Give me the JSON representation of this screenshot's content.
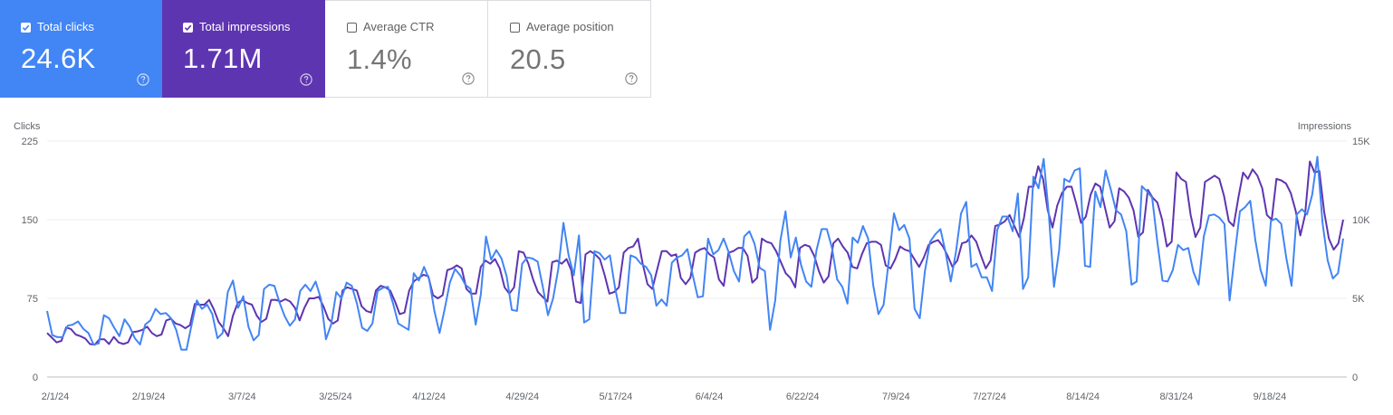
{
  "cards": [
    {
      "key": "clicks",
      "label": "Total clicks",
      "value": "24.6K",
      "checked": true,
      "color": "#4285f4"
    },
    {
      "key": "impressions",
      "label": "Total impressions",
      "value": "1.71M",
      "checked": true,
      "color": "#5e35b1"
    },
    {
      "key": "ctr",
      "label": "Average CTR",
      "value": "1.4%",
      "checked": false,
      "color": "#ffffff"
    },
    {
      "key": "position",
      "label": "Average position",
      "value": "20.5",
      "checked": false,
      "color": "#ffffff"
    }
  ],
  "chart_data": {
    "type": "line",
    "left_axis": {
      "label": "Clicks",
      "ticks": [
        "225",
        "150",
        "75",
        "0"
      ],
      "range": [
        0,
        225
      ]
    },
    "right_axis": {
      "label": "Impressions",
      "ticks": [
        "15K",
        "10K",
        "5K",
        "0"
      ],
      "range": [
        0,
        15000
      ]
    },
    "x_tick_labels": [
      "2/1/24",
      "2/19/24",
      "3/7/24",
      "3/25/24",
      "4/12/24",
      "4/29/24",
      "5/17/24",
      "6/4/24",
      "6/22/24",
      "7/9/24",
      "7/27/24",
      "8/14/24",
      "8/31/24",
      "9/18/24"
    ],
    "grid": true,
    "series": [
      {
        "key": "clicks",
        "axis": "left",
        "color": "#4285f4",
        "values": [
          63,
          40,
          38,
          38,
          49,
          50,
          53,
          46,
          42,
          31,
          32,
          59,
          56,
          47,
          39,
          55,
          48,
          37,
          31,
          50,
          54,
          65,
          60,
          61,
          56,
          45,
          26,
          26,
          50,
          73,
          65,
          69,
          60,
          37,
          42,
          81,
          92,
          66,
          77,
          48,
          35,
          40,
          84,
          88,
          87,
          71,
          58,
          49,
          55,
          82,
          88,
          82,
          91,
          75,
          36,
          50,
          81,
          75,
          90,
          87,
          70,
          47,
          44,
          51,
          82,
          85,
          86,
          70,
          51,
          48,
          45,
          99,
          92,
          105,
          93,
          63,
          42,
          65,
          90,
          103,
          97,
          88,
          84,
          50,
          79,
          134,
          112,
          121,
          113,
          96,
          64,
          63,
          108,
          114,
          113,
          110,
          86,
          59,
          75,
          103,
          147,
          116,
          97,
          135,
          52,
          55,
          120,
          118,
          112,
          116,
          85,
          61,
          61,
          116,
          114,
          108,
          105,
          97,
          68,
          74,
          68,
          109,
          114,
          116,
          122,
          98,
          76,
          77,
          132,
          117,
          121,
          132,
          119,
          101,
          91,
          134,
          139,
          127,
          104,
          101,
          45,
          73,
          130,
          158,
          114,
          133,
          107,
          91,
          86,
          121,
          141,
          141,
          123,
          93,
          86,
          70,
          133,
          128,
          144,
          132,
          87,
          60,
          69,
          111,
          156,
          140,
          145,
          132,
          65,
          56,
          101,
          129,
          136,
          141,
          119,
          91,
          119,
          156,
          167,
          105,
          108,
          95,
          95,
          82,
          140,
          153,
          153,
          139,
          175,
          84,
          95,
          191,
          180,
          208,
          155,
          86,
          121,
          189,
          186,
          197,
          199,
          106,
          105,
          177,
          162,
          197,
          179,
          159,
          155,
          139,
          88,
          91,
          182,
          177,
          171,
          129,
          92,
          91,
          102,
          126,
          121,
          123,
          100,
          88,
          134,
          154,
          155,
          152,
          146,
          73,
          117,
          158,
          162,
          168,
          130,
          102,
          87,
          149,
          151,
          146,
          113,
          87,
          155,
          160,
          155,
          174,
          210,
          147,
          111,
          94,
          99,
          132
        ]
      },
      {
        "key": "impressions",
        "axis": "right",
        "color": "#5e35b1",
        "values": [
          2800,
          2500,
          2200,
          2300,
          3150,
          3050,
          2700,
          2600,
          2450,
          2100,
          2050,
          2400,
          2400,
          2100,
          2550,
          2200,
          2100,
          2200,
          2850,
          2900,
          3000,
          3200,
          2800,
          2600,
          2700,
          3600,
          3700,
          3400,
          3300,
          3100,
          3300,
          4650,
          4600,
          4600,
          4900,
          4300,
          3500,
          3100,
          2600,
          3900,
          4700,
          4900,
          4700,
          4600,
          3900,
          3500,
          3700,
          4900,
          4900,
          4800,
          4950,
          4800,
          4400,
          3600,
          4400,
          5000,
          5000,
          5100,
          4500,
          3700,
          3400,
          3600,
          5500,
          5700,
          5600,
          5500,
          4500,
          4200,
          4100,
          5500,
          5800,
          5700,
          5500,
          4800,
          4000,
          4100,
          5500,
          6100,
          6300,
          6500,
          6400,
          5200,
          5000,
          5200,
          6800,
          6900,
          7100,
          6900,
          5600,
          5300,
          5300,
          7000,
          7400,
          7200,
          7500,
          6900,
          5700,
          5300,
          5700,
          8000,
          7900,
          7200,
          6200,
          5400,
          5100,
          4800,
          7300,
          7400,
          7200,
          7500,
          6800,
          4800,
          4700,
          7800,
          8000,
          7800,
          7500,
          6500,
          5300,
          5400,
          5700,
          7900,
          8200,
          8300,
          8800,
          7200,
          5900,
          5600,
          6800,
          8000,
          8000,
          7700,
          7800,
          6300,
          5900,
          6300,
          7900,
          8100,
          8200,
          7800,
          7600,
          6200,
          5800,
          7900,
          8000,
          8200,
          8200,
          7700,
          6000,
          6300,
          8800,
          8600,
          8500,
          8000,
          7300,
          6600,
          6300,
          5700,
          8200,
          8400,
          8300,
          7700,
          6700,
          6000,
          6400,
          8500,
          8800,
          8300,
          7900,
          7000,
          6900,
          7800,
          8500,
          8600,
          8600,
          8400,
          7100,
          6900,
          7500,
          8300,
          8100,
          8000,
          7500,
          7000,
          7600,
          8400,
          8600,
          8700,
          8300,
          7700,
          7000,
          7400,
          8500,
          8600,
          9000,
          8600,
          7700,
          6900,
          7400,
          9600,
          9700,
          9900,
          10300,
          9600,
          8900,
          10100,
          12100,
          12100,
          13400,
          12600,
          10600,
          9500,
          10900,
          11700,
          12100,
          12100,
          11000,
          9800,
          10200,
          11600,
          12300,
          12100,
          10800,
          9500,
          9900,
          12000,
          11800,
          11400,
          10600,
          8900,
          9200,
          11900,
          11400,
          11100,
          10000,
          8300,
          8600,
          13000,
          12600,
          12400,
          10300,
          8900,
          9500,
          12400,
          12600,
          12800,
          12600,
          11500,
          9900,
          9600,
          11400,
          13000,
          12600,
          13200,
          12800,
          12000,
          10300,
          10000,
          12600,
          12500,
          12300,
          11700,
          10600,
          9000,
          10300,
          13700,
          13000,
          13100,
          10500,
          8800,
          8100,
          8500,
          10000
        ]
      }
    ]
  }
}
